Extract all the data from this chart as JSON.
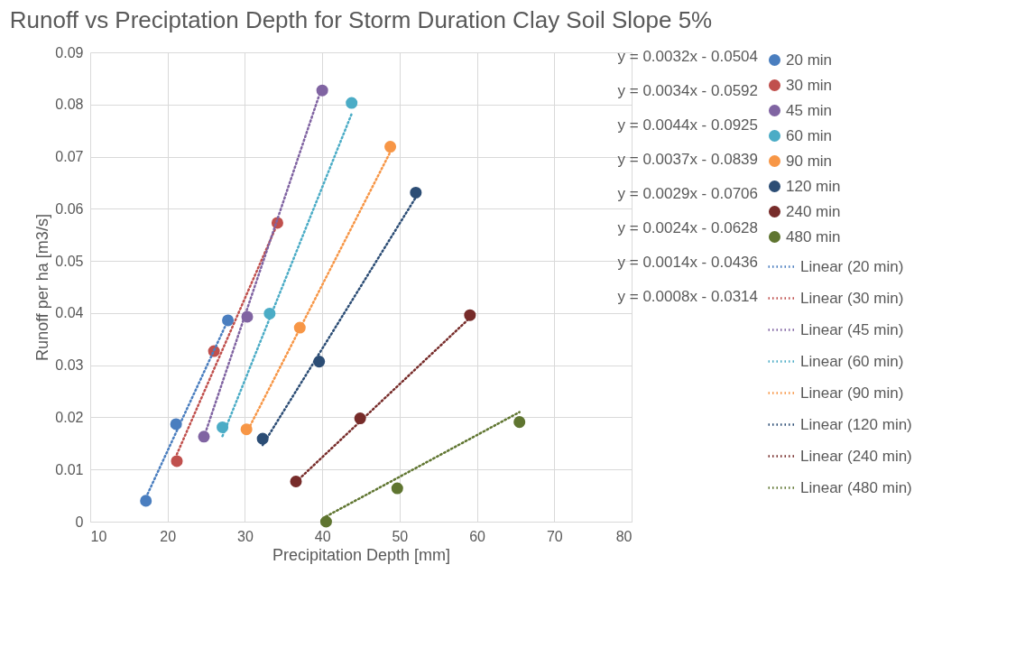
{
  "chart_data": {
    "type": "scatter",
    "title": "Runoff vs Preciptation Depth for Storm Duration Clay Soil Slope 5%",
    "xlabel": "Precipitation Depth [mm]",
    "ylabel": "Runoff per ha [m3/s]",
    "xlim": [
      10,
      80
    ],
    "xticks": [
      10,
      20,
      30,
      40,
      50,
      60,
      70,
      80
    ],
    "ylim": [
      0,
      0.09
    ],
    "yticks": [
      0,
      0.01,
      0.02,
      0.03,
      0.04,
      0.05,
      0.06,
      0.07,
      0.08,
      0.09
    ],
    "grid": true,
    "legend": "right",
    "marker": "circle",
    "series": [
      {
        "name": "20 min",
        "color": "#4a7ebf",
        "x": [
          17.2,
          21.1,
          27.8
        ],
        "values": [
          0.004,
          0.0187,
          0.0386
        ]
      },
      {
        "name": "30 min",
        "color": "#c0504d",
        "x": [
          21.2,
          26.0,
          34.2
        ],
        "values": [
          0.0116,
          0.0327,
          0.0573
        ]
      },
      {
        "name": "45 min",
        "color": "#8064a2",
        "x": [
          24.7,
          30.3,
          40.0
        ],
        "values": [
          0.0163,
          0.0393,
          0.0827
        ]
      },
      {
        "name": "60 min",
        "color": "#4bacc6",
        "x": [
          27.1,
          33.2,
          43.8
        ],
        "values": [
          0.0181,
          0.0399,
          0.0803
        ]
      },
      {
        "name": "90 min",
        "color": "#f79646",
        "x": [
          30.2,
          37.1,
          48.8
        ],
        "values": [
          0.0177,
          0.0372,
          0.0719
        ]
      },
      {
        "name": "120 min",
        "color": "#2c4d75",
        "x": [
          32.3,
          39.6,
          52.1
        ],
        "values": [
          0.0159,
          0.0307,
          0.0631
        ]
      },
      {
        "name": "240 min",
        "color": "#772c2a",
        "x": [
          36.6,
          44.9,
          59.1
        ],
        "values": [
          0.0077,
          0.0198,
          0.0396
        ]
      },
      {
        "name": "480 min",
        "color": "#5f7530",
        "x": [
          40.5,
          49.7,
          65.5
        ],
        "values": [
          0.0,
          0.0064,
          0.0191
        ]
      },
      {
        "name": "Linear (20 min)",
        "type": "line",
        "marker": "none",
        "line_style": "dotted",
        "color": "#4a7ebf",
        "x": [
          17.2,
          27.8
        ],
        "values": [
          0.0046,
          0.0386
        ]
      },
      {
        "name": "Linear (30 min)",
        "type": "line",
        "marker": "none",
        "line_style": "dotted",
        "color": "#c0504d",
        "x": [
          21.2,
          34.2
        ],
        "values": [
          0.0129,
          0.0571
        ]
      },
      {
        "name": "Linear (45 min)",
        "type": "line",
        "marker": "none",
        "line_style": "dotted",
        "color": "#8064a2",
        "x": [
          24.7,
          40.0
        ],
        "values": [
          0.0162,
          0.0835
        ]
      },
      {
        "name": "Linear (60 min)",
        "type": "line",
        "marker": "none",
        "line_style": "dotted",
        "color": "#4bacc6",
        "x": [
          27.1,
          43.8
        ],
        "values": [
          0.0164,
          0.0782
        ]
      },
      {
        "name": "Linear (90 min)",
        "type": "line",
        "marker": "none",
        "line_style": "dotted",
        "color": "#f79646",
        "x": [
          30.2,
          48.8
        ],
        "values": [
          0.017,
          0.0709
        ]
      },
      {
        "name": "Linear (120 min)",
        "type": "line",
        "marker": "none",
        "line_style": "dotted",
        "color": "#2c4d75",
        "x": [
          32.3,
          52.1
        ],
        "values": [
          0.0147,
          0.0622
        ]
      },
      {
        "name": "Linear (240 min)",
        "type": "line",
        "marker": "none",
        "line_style": "dotted",
        "color": "#772c2a",
        "x": [
          36.6,
          59.1
        ],
        "values": [
          0.0076,
          0.0391
        ]
      },
      {
        "name": "Linear (480 min)",
        "type": "line",
        "marker": "none",
        "line_style": "dotted",
        "color": "#5f7530",
        "x": [
          40.5,
          65.5
        ],
        "values": [
          0.001,
          0.021
        ]
      }
    ],
    "annotations": [
      "y = 0.0032x - 0.0504",
      "y = 0.0034x - 0.0592",
      "y = 0.0044x - 0.0925",
      "y = 0.0037x - 0.0839",
      "y = 0.0029x - 0.0706",
      "y = 0.0024x - 0.0628",
      "y = 0.0014x - 0.0436",
      "y = 0.0008x - 0.0314"
    ]
  }
}
